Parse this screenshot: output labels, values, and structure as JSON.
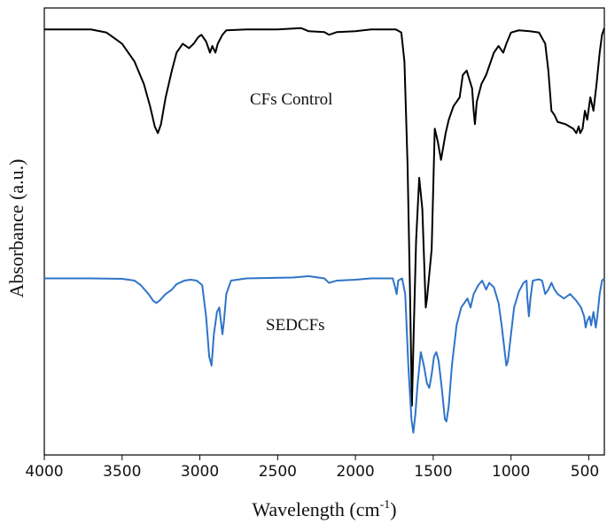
{
  "chart_data": {
    "type": "line",
    "title": "",
    "xlabel_main": "Wavelength (cm",
    "xlabel_sup": "-1",
    "xlabel_close": ")",
    "ylabel": "Absorbance (a.u.)",
    "xlim": [
      4000,
      400
    ],
    "x_reversed": true,
    "ylim": [
      0,
      1
    ],
    "grid": false,
    "legend": "none",
    "x_ticks": [
      "4000",
      "3500",
      "3000",
      "2500",
      "2000",
      "1500",
      "1000",
      "500"
    ],
    "x_tick_values": [
      4000,
      3500,
      3000,
      2500,
      2000,
      1500,
      1000,
      500
    ],
    "annotations": [
      "CFs Control",
      "SEDCFs"
    ],
    "series": [
      {
        "name": "CFs Control",
        "color": "#000000",
        "points": [
          [
            4000,
            0.952
          ],
          [
            3700,
            0.952
          ],
          [
            3600,
            0.945
          ],
          [
            3500,
            0.92
          ],
          [
            3420,
            0.88
          ],
          [
            3360,
            0.83
          ],
          [
            3320,
            0.78
          ],
          [
            3290,
            0.735
          ],
          [
            3270,
            0.72
          ],
          [
            3250,
            0.74
          ],
          [
            3220,
            0.8
          ],
          [
            3180,
            0.86
          ],
          [
            3150,
            0.9
          ],
          [
            3110,
            0.92
          ],
          [
            3070,
            0.91
          ],
          [
            3040,
            0.92
          ],
          [
            3010,
            0.935
          ],
          [
            2990,
            0.94
          ],
          [
            2960,
            0.925
          ],
          [
            2935,
            0.9
          ],
          [
            2920,
            0.915
          ],
          [
            2900,
            0.9
          ],
          [
            2885,
            0.92
          ],
          [
            2855,
            0.94
          ],
          [
            2830,
            0.95
          ],
          [
            2700,
            0.952
          ],
          [
            2500,
            0.952
          ],
          [
            2350,
            0.955
          ],
          [
            2300,
            0.948
          ],
          [
            2200,
            0.946
          ],
          [
            2170,
            0.94
          ],
          [
            2120,
            0.946
          ],
          [
            2000,
            0.948
          ],
          [
            1900,
            0.952
          ],
          [
            1740,
            0.952
          ],
          [
            1705,
            0.945
          ],
          [
            1685,
            0.88
          ],
          [
            1665,
            0.65
          ],
          [
            1650,
            0.38
          ],
          [
            1637,
            0.11
          ],
          [
            1625,
            0.28
          ],
          [
            1610,
            0.48
          ],
          [
            1590,
            0.62
          ],
          [
            1570,
            0.55
          ],
          [
            1548,
            0.33
          ],
          [
            1540,
            0.35
          ],
          [
            1510,
            0.46
          ],
          [
            1490,
            0.73
          ],
          [
            1470,
            0.7
          ],
          [
            1450,
            0.66
          ],
          [
            1420,
            0.72
          ],
          [
            1400,
            0.75
          ],
          [
            1370,
            0.78
          ],
          [
            1330,
            0.8
          ],
          [
            1310,
            0.85
          ],
          [
            1285,
            0.86
          ],
          [
            1250,
            0.82
          ],
          [
            1240,
            0.77
          ],
          [
            1232,
            0.74
          ],
          [
            1220,
            0.79
          ],
          [
            1190,
            0.83
          ],
          [
            1160,
            0.85
          ],
          [
            1110,
            0.9
          ],
          [
            1080,
            0.915
          ],
          [
            1050,
            0.9
          ],
          [
            1030,
            0.92
          ],
          [
            1000,
            0.945
          ],
          [
            950,
            0.95
          ],
          [
            880,
            0.948
          ],
          [
            820,
            0.945
          ],
          [
            780,
            0.92
          ],
          [
            760,
            0.86
          ],
          [
            740,
            0.77
          ],
          [
            720,
            0.76
          ],
          [
            700,
            0.745
          ],
          [
            650,
            0.74
          ],
          [
            600,
            0.73
          ],
          [
            580,
            0.72
          ],
          [
            565,
            0.735
          ],
          [
            555,
            0.72
          ],
          [
            540,
            0.73
          ],
          [
            525,
            0.77
          ],
          [
            510,
            0.75
          ],
          [
            490,
            0.8
          ],
          [
            470,
            0.77
          ],
          [
            450,
            0.83
          ],
          [
            430,
            0.9
          ],
          [
            415,
            0.94
          ],
          [
            400,
            0.955
          ]
        ]
      },
      {
        "name": "SEDCFs",
        "color": "#2f74c8",
        "points": [
          [
            4000,
            0.395
          ],
          [
            3700,
            0.395
          ],
          [
            3500,
            0.394
          ],
          [
            3420,
            0.39
          ],
          [
            3380,
            0.38
          ],
          [
            3330,
            0.36
          ],
          [
            3300,
            0.345
          ],
          [
            3280,
            0.34
          ],
          [
            3260,
            0.345
          ],
          [
            3220,
            0.36
          ],
          [
            3180,
            0.37
          ],
          [
            3150,
            0.382
          ],
          [
            3100,
            0.39
          ],
          [
            3060,
            0.392
          ],
          [
            3020,
            0.39
          ],
          [
            2985,
            0.38
          ],
          [
            2960,
            0.31
          ],
          [
            2940,
            0.22
          ],
          [
            2925,
            0.2
          ],
          [
            2910,
            0.27
          ],
          [
            2890,
            0.32
          ],
          [
            2875,
            0.33
          ],
          [
            2865,
            0.3
          ],
          [
            2855,
            0.27
          ],
          [
            2845,
            0.3
          ],
          [
            2830,
            0.36
          ],
          [
            2800,
            0.39
          ],
          [
            2700,
            0.395
          ],
          [
            2400,
            0.397
          ],
          [
            2300,
            0.4
          ],
          [
            2200,
            0.395
          ],
          [
            2170,
            0.385
          ],
          [
            2120,
            0.39
          ],
          [
            2000,
            0.392
          ],
          [
            1900,
            0.395
          ],
          [
            1760,
            0.395
          ],
          [
            1745,
            0.375
          ],
          [
            1735,
            0.36
          ],
          [
            1725,
            0.39
          ],
          [
            1700,
            0.395
          ],
          [
            1680,
            0.36
          ],
          [
            1660,
            0.2
          ],
          [
            1640,
            0.08
          ],
          [
            1628,
            0.05
          ],
          [
            1615,
            0.09
          ],
          [
            1600,
            0.16
          ],
          [
            1580,
            0.23
          ],
          [
            1560,
            0.2
          ],
          [
            1540,
            0.16
          ],
          [
            1525,
            0.15
          ],
          [
            1510,
            0.18
          ],
          [
            1495,
            0.22
          ],
          [
            1480,
            0.23
          ],
          [
            1465,
            0.21
          ],
          [
            1445,
            0.15
          ],
          [
            1425,
            0.08
          ],
          [
            1415,
            0.075
          ],
          [
            1400,
            0.11
          ],
          [
            1380,
            0.2
          ],
          [
            1350,
            0.29
          ],
          [
            1320,
            0.33
          ],
          [
            1300,
            0.34
          ],
          [
            1280,
            0.35
          ],
          [
            1260,
            0.33
          ],
          [
            1240,
            0.36
          ],
          [
            1210,
            0.38
          ],
          [
            1185,
            0.39
          ],
          [
            1160,
            0.37
          ],
          [
            1140,
            0.385
          ],
          [
            1110,
            0.375
          ],
          [
            1080,
            0.34
          ],
          [
            1060,
            0.29
          ],
          [
            1040,
            0.23
          ],
          [
            1030,
            0.2
          ],
          [
            1020,
            0.21
          ],
          [
            1000,
            0.27
          ],
          [
            980,
            0.33
          ],
          [
            950,
            0.365
          ],
          [
            920,
            0.385
          ],
          [
            900,
            0.39
          ],
          [
            895,
            0.35
          ],
          [
            885,
            0.31
          ],
          [
            875,
            0.35
          ],
          [
            860,
            0.39
          ],
          [
            820,
            0.393
          ],
          [
            800,
            0.39
          ],
          [
            780,
            0.36
          ],
          [
            760,
            0.37
          ],
          [
            740,
            0.385
          ],
          [
            720,
            0.37
          ],
          [
            700,
            0.36
          ],
          [
            660,
            0.35
          ],
          [
            620,
            0.36
          ],
          [
            580,
            0.345
          ],
          [
            550,
            0.33
          ],
          [
            530,
            0.31
          ],
          [
            520,
            0.285
          ],
          [
            510,
            0.3
          ],
          [
            495,
            0.31
          ],
          [
            485,
            0.29
          ],
          [
            470,
            0.32
          ],
          [
            455,
            0.285
          ],
          [
            445,
            0.31
          ],
          [
            430,
            0.36
          ],
          [
            415,
            0.39
          ],
          [
            400,
            0.395
          ]
        ]
      }
    ]
  }
}
